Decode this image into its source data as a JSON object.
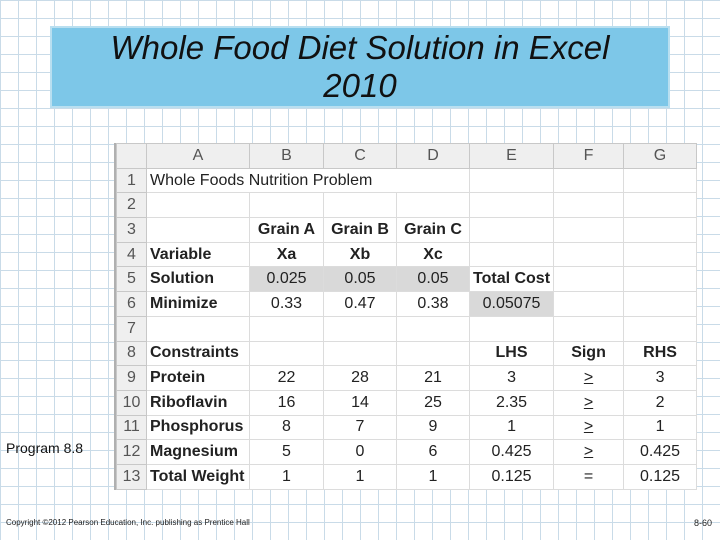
{
  "slide": {
    "title_line1": "Whole Food Diet Solution in Excel",
    "title_line2": "2010",
    "program_label": "Program 8.8",
    "copyright": "Copyright ©2012 Pearson Education, Inc. publishing as Prentice Hall",
    "page_number": "8-60"
  },
  "spreadsheet": {
    "column_headers": [
      "A",
      "B",
      "C",
      "D",
      "E",
      "F",
      "G"
    ],
    "row_headers": [
      "1",
      "2",
      "3",
      "4",
      "5",
      "6",
      "7",
      "8",
      "9",
      "10",
      "11",
      "12",
      "13"
    ],
    "title": "Whole Foods Nutrition Problem",
    "grain_headers": [
      "Grain A",
      "Grain B",
      "Grain C"
    ],
    "variable_label": "Variable",
    "variables": [
      "Xa",
      "Xb",
      "Xc"
    ],
    "solution_label": "Solution",
    "solution_values": [
      "0.025",
      "0.05",
      "0.05"
    ],
    "total_cost_label": "Total Cost",
    "minimize_label": "Minimize",
    "minimize_values": [
      "0.33",
      "0.47",
      "0.38"
    ],
    "total_cost_value": "0.05075",
    "constraints_label": "Constraints",
    "lhs_label": "LHS",
    "sign_label": "Sign",
    "rhs_label": "RHS",
    "constraints": [
      {
        "name": "Protein",
        "a": "22",
        "b": "28",
        "c": "21",
        "lhs": "3",
        "sign": ">",
        "rhs": "3"
      },
      {
        "name": "Riboflavin",
        "a": "16",
        "b": "14",
        "c": "25",
        "lhs": "2.35",
        "sign": ">",
        "rhs": "2"
      },
      {
        "name": "Phosphorus",
        "a": "8",
        "b": "7",
        "c": "9",
        "lhs": "1",
        "sign": ">",
        "rhs": "1"
      },
      {
        "name": "Magnesium",
        "a": "5",
        "b": "0",
        "c": "6",
        "lhs": "0.425",
        "sign": ">",
        "rhs": "0.425"
      },
      {
        "name": "Total Weight",
        "a": "1",
        "b": "1",
        "c": "1",
        "lhs": "0.125",
        "sign": "=",
        "rhs": "0.125"
      }
    ]
  }
}
